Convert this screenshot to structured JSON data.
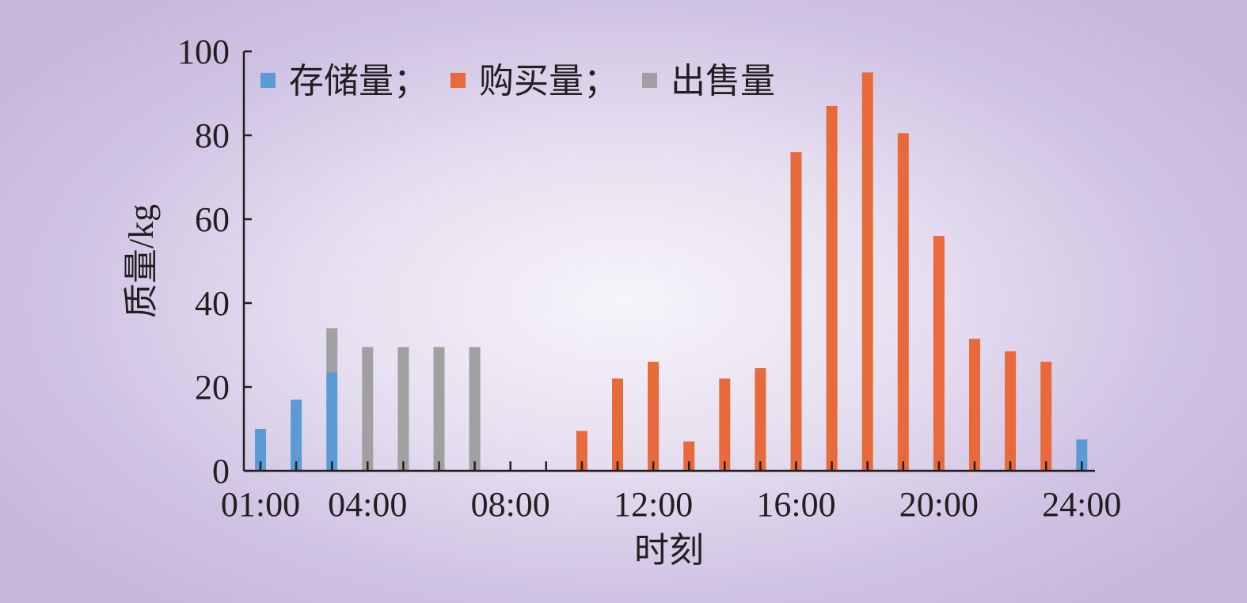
{
  "chart_data": {
    "type": "bar",
    "stacked": true,
    "xlabel": "时刻",
    "ylabel": "质量/kg",
    "ylim": [
      0,
      100
    ],
    "yticks": [
      0,
      20,
      40,
      60,
      80,
      100
    ],
    "hours": [
      1,
      2,
      3,
      4,
      5,
      6,
      7,
      8,
      9,
      10,
      11,
      12,
      13,
      14,
      15,
      16,
      17,
      18,
      19,
      20,
      21,
      22,
      23,
      24
    ],
    "xtick_labels": [
      {
        "hour": 1,
        "label": "01:00"
      },
      {
        "hour": 4,
        "label": "04:00"
      },
      {
        "hour": 8,
        "label": "08:00"
      },
      {
        "hour": 12,
        "label": "12:00"
      },
      {
        "hour": 16,
        "label": "16:00"
      },
      {
        "hour": 20,
        "label": "20:00"
      },
      {
        "hour": 24,
        "label": "24:00"
      }
    ],
    "series": [
      {
        "name": "存储量；",
        "color": "#5b9bd5",
        "values": [
          10,
          17,
          23.5,
          0,
          0,
          0,
          0,
          0,
          0,
          0,
          0,
          0,
          0,
          0,
          0,
          0,
          0,
          0,
          0,
          0,
          0,
          0,
          0,
          7.5
        ]
      },
      {
        "name": "购买量；",
        "color": "#e8693a",
        "values": [
          0,
          0,
          0,
          0,
          0,
          0,
          0,
          0,
          0,
          9.5,
          22,
          26,
          7,
          22,
          24.5,
          76,
          87,
          95,
          80.5,
          56,
          31.5,
          28.5,
          26,
          0
        ]
      },
      {
        "name": "出售量",
        "color": "#a0a0a0",
        "values": [
          0,
          0,
          10.5,
          29.5,
          29.5,
          29.5,
          29.5,
          0,
          0,
          0,
          0,
          0,
          0,
          0,
          0,
          0,
          0,
          0,
          0,
          0,
          0,
          0,
          0,
          0
        ]
      }
    ],
    "legend_placement": "top-left",
    "grid": false
  }
}
